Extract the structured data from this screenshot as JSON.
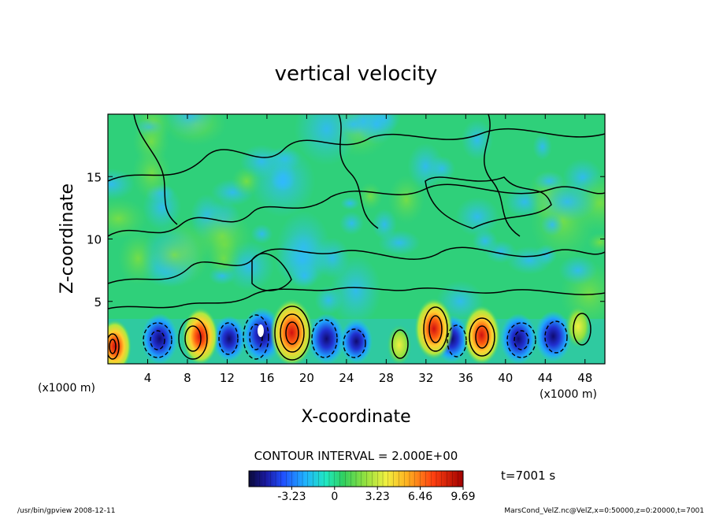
{
  "chart_data": {
    "type": "heatmap",
    "title": "vertical velocity",
    "xlabel": "X-coordinate",
    "ylabel": "Z-coordinate",
    "x_unit": "(x1000 m)",
    "y_unit": "(x1000 m)",
    "xlim": [
      0,
      50
    ],
    "ylim": [
      0,
      20
    ],
    "x_ticks": [
      4,
      8,
      12,
      16,
      20,
      24,
      28,
      32,
      36,
      40,
      44,
      48
    ],
    "y_ticks": [
      5,
      10,
      15
    ],
    "contour_interval_text": "CONTOUR INTERVAL = 2.000E+00",
    "time_text": "t=7001 s",
    "colorbar": {
      "range": [
        -6.46,
        9.69
      ],
      "tick_values": [
        -3.23,
        0,
        3.23,
        6.46,
        9.69
      ],
      "tick_labels": [
        "-3.23",
        "0",
        "3.23",
        "6.46",
        "9.69"
      ]
    },
    "updrafts": [
      {
        "x": 0.7,
        "z": 1.4,
        "w": 6.0
      },
      {
        "x": 9.3,
        "z": 2.2,
        "w": 7.0
      },
      {
        "x": 18.5,
        "z": 2.5,
        "w": 9.5
      },
      {
        "x": 29.3,
        "z": 1.5,
        "w": 3.0
      },
      {
        "x": 32.8,
        "z": 2.8,
        "w": 8.0
      },
      {
        "x": 37.6,
        "z": 2.3,
        "w": 7.5
      },
      {
        "x": 47.3,
        "z": 3.0,
        "w": 3.5
      }
    ],
    "downdrafts": [
      {
        "x": 5.2,
        "z": 2.0,
        "w": -5.0
      },
      {
        "x": 12.2,
        "z": 2.0,
        "w": -3.5
      },
      {
        "x": 15.5,
        "z": 2.3,
        "w": -6.5
      },
      {
        "x": 22.0,
        "z": 2.0,
        "w": -5.0
      },
      {
        "x": 25.0,
        "z": 1.8,
        "w": -3.0
      },
      {
        "x": 34.6,
        "z": 2.0,
        "w": -4.0
      },
      {
        "x": 41.3,
        "z": 2.0,
        "w": -5.0
      },
      {
        "x": 44.8,
        "z": 2.2,
        "w": -5.0
      }
    ]
  },
  "footer": {
    "left_text": "/usr/bin/gpview   2008-12-11",
    "right_text": "MarsCond_VelZ.nc@VelZ,x=0:50000,z=0:20000,t=7001"
  },
  "colors": {
    "plot_background": "#2fd07a",
    "contour": "#000000"
  }
}
